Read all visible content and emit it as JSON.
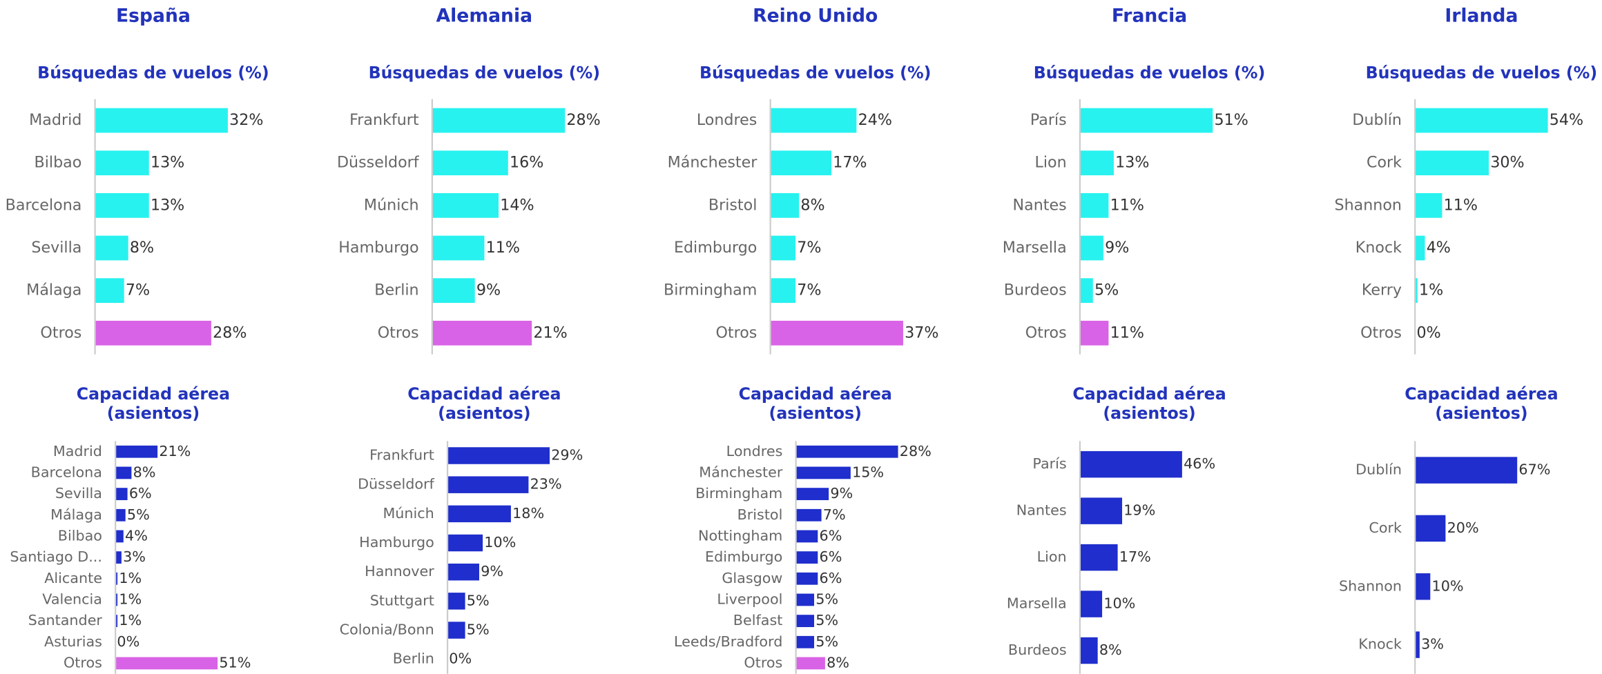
{
  "chart_data": [
    {
      "type": "bar",
      "orientation": "horizontal",
      "heading": "España",
      "title": "Búsquedas de vuelos (%)",
      "categories": [
        "Madrid",
        "Bilbao",
        "Barcelona",
        "Sevilla",
        "Málaga",
        "Otros"
      ],
      "values": [
        32,
        13,
        13,
        8,
        7,
        28
      ],
      "value_labels": [
        "32%",
        "13%",
        "13%",
        "8%",
        "7%",
        "28%"
      ],
      "colors": [
        "#27f2ef",
        "#27f2ef",
        "#27f2ef",
        "#27f2ef",
        "#27f2ef",
        "#d963e6"
      ]
    },
    {
      "type": "bar",
      "orientation": "horizontal",
      "title": "Capacidad aérea\n(asientos)",
      "categories": [
        "Madrid",
        "Barcelona",
        "Sevilla",
        "Málaga",
        "Bilbao",
        "Santiago D...",
        "Alicante",
        "Valencia",
        "Santander",
        "Asturias",
        "Otros"
      ],
      "values": [
        21,
        8,
        6,
        5,
        4,
        3,
        1,
        1,
        1,
        0,
        51
      ],
      "value_labels": [
        "21%",
        "8%",
        "6%",
        "5%",
        "4%",
        "3%",
        "1%",
        "1%",
        "1%",
        "0%",
        "51%"
      ],
      "colors": [
        "#1f2ecc",
        "#1f2ecc",
        "#1f2ecc",
        "#1f2ecc",
        "#1f2ecc",
        "#1f2ecc",
        "#1f2ecc",
        "#1f2ecc",
        "#1f2ecc",
        "#1f2ecc",
        "#d963e6"
      ]
    },
    {
      "type": "bar",
      "orientation": "horizontal",
      "heading": "Alemania",
      "title": "Búsquedas de vuelos (%)",
      "categories": [
        "Frankfurt",
        "Düsseldorf",
        "Múnich",
        "Hamburgo",
        "Berlin",
        "Otros"
      ],
      "values": [
        28,
        16,
        14,
        11,
        9,
        21
      ],
      "value_labels": [
        "28%",
        "16%",
        "14%",
        "11%",
        "9%",
        "21%"
      ],
      "colors": [
        "#27f2ef",
        "#27f2ef",
        "#27f2ef",
        "#27f2ef",
        "#27f2ef",
        "#d963e6"
      ]
    },
    {
      "type": "bar",
      "orientation": "horizontal",
      "title": "Capacidad aérea\n(asientos)",
      "categories": [
        "Frankfurt",
        "Düsseldorf",
        "Múnich",
        "Hamburgo",
        "Hannover",
        "Stuttgart",
        "Colonia/Bonn",
        "Berlin"
      ],
      "values": [
        29,
        23,
        18,
        10,
        9,
        5,
        5,
        0
      ],
      "value_labels": [
        "29%",
        "23%",
        "18%",
        "10%",
        "9%",
        "5%",
        "5%",
        "0%"
      ],
      "colors": [
        "#1f2ecc",
        "#1f2ecc",
        "#1f2ecc",
        "#1f2ecc",
        "#1f2ecc",
        "#1f2ecc",
        "#1f2ecc",
        "#1f2ecc"
      ]
    },
    {
      "type": "bar",
      "orientation": "horizontal",
      "heading": "Reino Unido",
      "title": "Búsquedas de vuelos (%)",
      "categories": [
        "Londres",
        "Mánchester",
        "Bristol",
        "Edimburgo",
        "Birmingham",
        "Otros"
      ],
      "values": [
        24,
        17,
        8,
        7,
        7,
        37
      ],
      "value_labels": [
        "24%",
        "17%",
        "8%",
        "7%",
        "7%",
        "37%"
      ],
      "colors": [
        "#27f2ef",
        "#27f2ef",
        "#27f2ef",
        "#27f2ef",
        "#27f2ef",
        "#d963e6"
      ]
    },
    {
      "type": "bar",
      "orientation": "horizontal",
      "title": "Capacidad aérea\n(asientos)",
      "categories": [
        "Londres",
        "Mánchester",
        "Birmingham",
        "Bristol",
        "Nottingham",
        "Edimburgo",
        "Glasgow",
        "Liverpool",
        "Belfast",
        "Leeds/Bradford",
        "Otros"
      ],
      "values": [
        28,
        15,
        9,
        7,
        6,
        6,
        6,
        5,
        5,
        5,
        8
      ],
      "value_labels": [
        "28%",
        "15%",
        "9%",
        "7%",
        "6%",
        "6%",
        "6%",
        "5%",
        "5%",
        "5%",
        "8%"
      ],
      "colors": [
        "#1f2ecc",
        "#1f2ecc",
        "#1f2ecc",
        "#1f2ecc",
        "#1f2ecc",
        "#1f2ecc",
        "#1f2ecc",
        "#1f2ecc",
        "#1f2ecc",
        "#1f2ecc",
        "#d963e6"
      ]
    },
    {
      "type": "bar",
      "orientation": "horizontal",
      "heading": "Francia",
      "title": "Búsquedas de vuelos (%)",
      "categories": [
        "París",
        "Lion",
        "Nantes",
        "Marsella",
        "Burdeos",
        "Otros"
      ],
      "values": [
        51,
        13,
        11,
        9,
        5,
        11
      ],
      "value_labels": [
        "51%",
        "13%",
        "11%",
        "9%",
        "5%",
        "11%"
      ],
      "colors": [
        "#27f2ef",
        "#27f2ef",
        "#27f2ef",
        "#27f2ef",
        "#27f2ef",
        "#d963e6"
      ]
    },
    {
      "type": "bar",
      "orientation": "horizontal",
      "title": "Capacidad aérea\n(asientos)",
      "categories": [
        "París",
        "Nantes",
        "Lion",
        "Marsella",
        "Burdeos"
      ],
      "values": [
        46,
        19,
        17,
        10,
        8
      ],
      "value_labels": [
        "46%",
        "19%",
        "17%",
        "10%",
        "8%"
      ],
      "colors": [
        "#1f2ecc",
        "#1f2ecc",
        "#1f2ecc",
        "#1f2ecc",
        "#1f2ecc"
      ]
    },
    {
      "type": "bar",
      "orientation": "horizontal",
      "heading": "Irlanda",
      "title": "Búsquedas de vuelos (%)",
      "categories": [
        "Dublín",
        "Cork",
        "Shannon",
        "Knock",
        "Kerry",
        "Otros"
      ],
      "values": [
        54,
        30,
        11,
        4,
        1,
        0
      ],
      "value_labels": [
        "54%",
        "30%",
        "11%",
        "4%",
        "1%",
        "0%"
      ],
      "colors": [
        "#27f2ef",
        "#27f2ef",
        "#27f2ef",
        "#27f2ef",
        "#27f2ef",
        "#d963e6"
      ]
    },
    {
      "type": "bar",
      "orientation": "horizontal",
      "title": "Capacidad aérea\n(asientos)",
      "categories": [
        "Dublín",
        "Cork",
        "Shannon",
        "Knock"
      ],
      "values": [
        67,
        20,
        10,
        3
      ],
      "value_labels": [
        "67%",
        "20%",
        "10%",
        "3%"
      ],
      "colors": [
        "#1f2ecc",
        "#1f2ecc",
        "#1f2ecc",
        "#1f2ecc"
      ]
    }
  ]
}
